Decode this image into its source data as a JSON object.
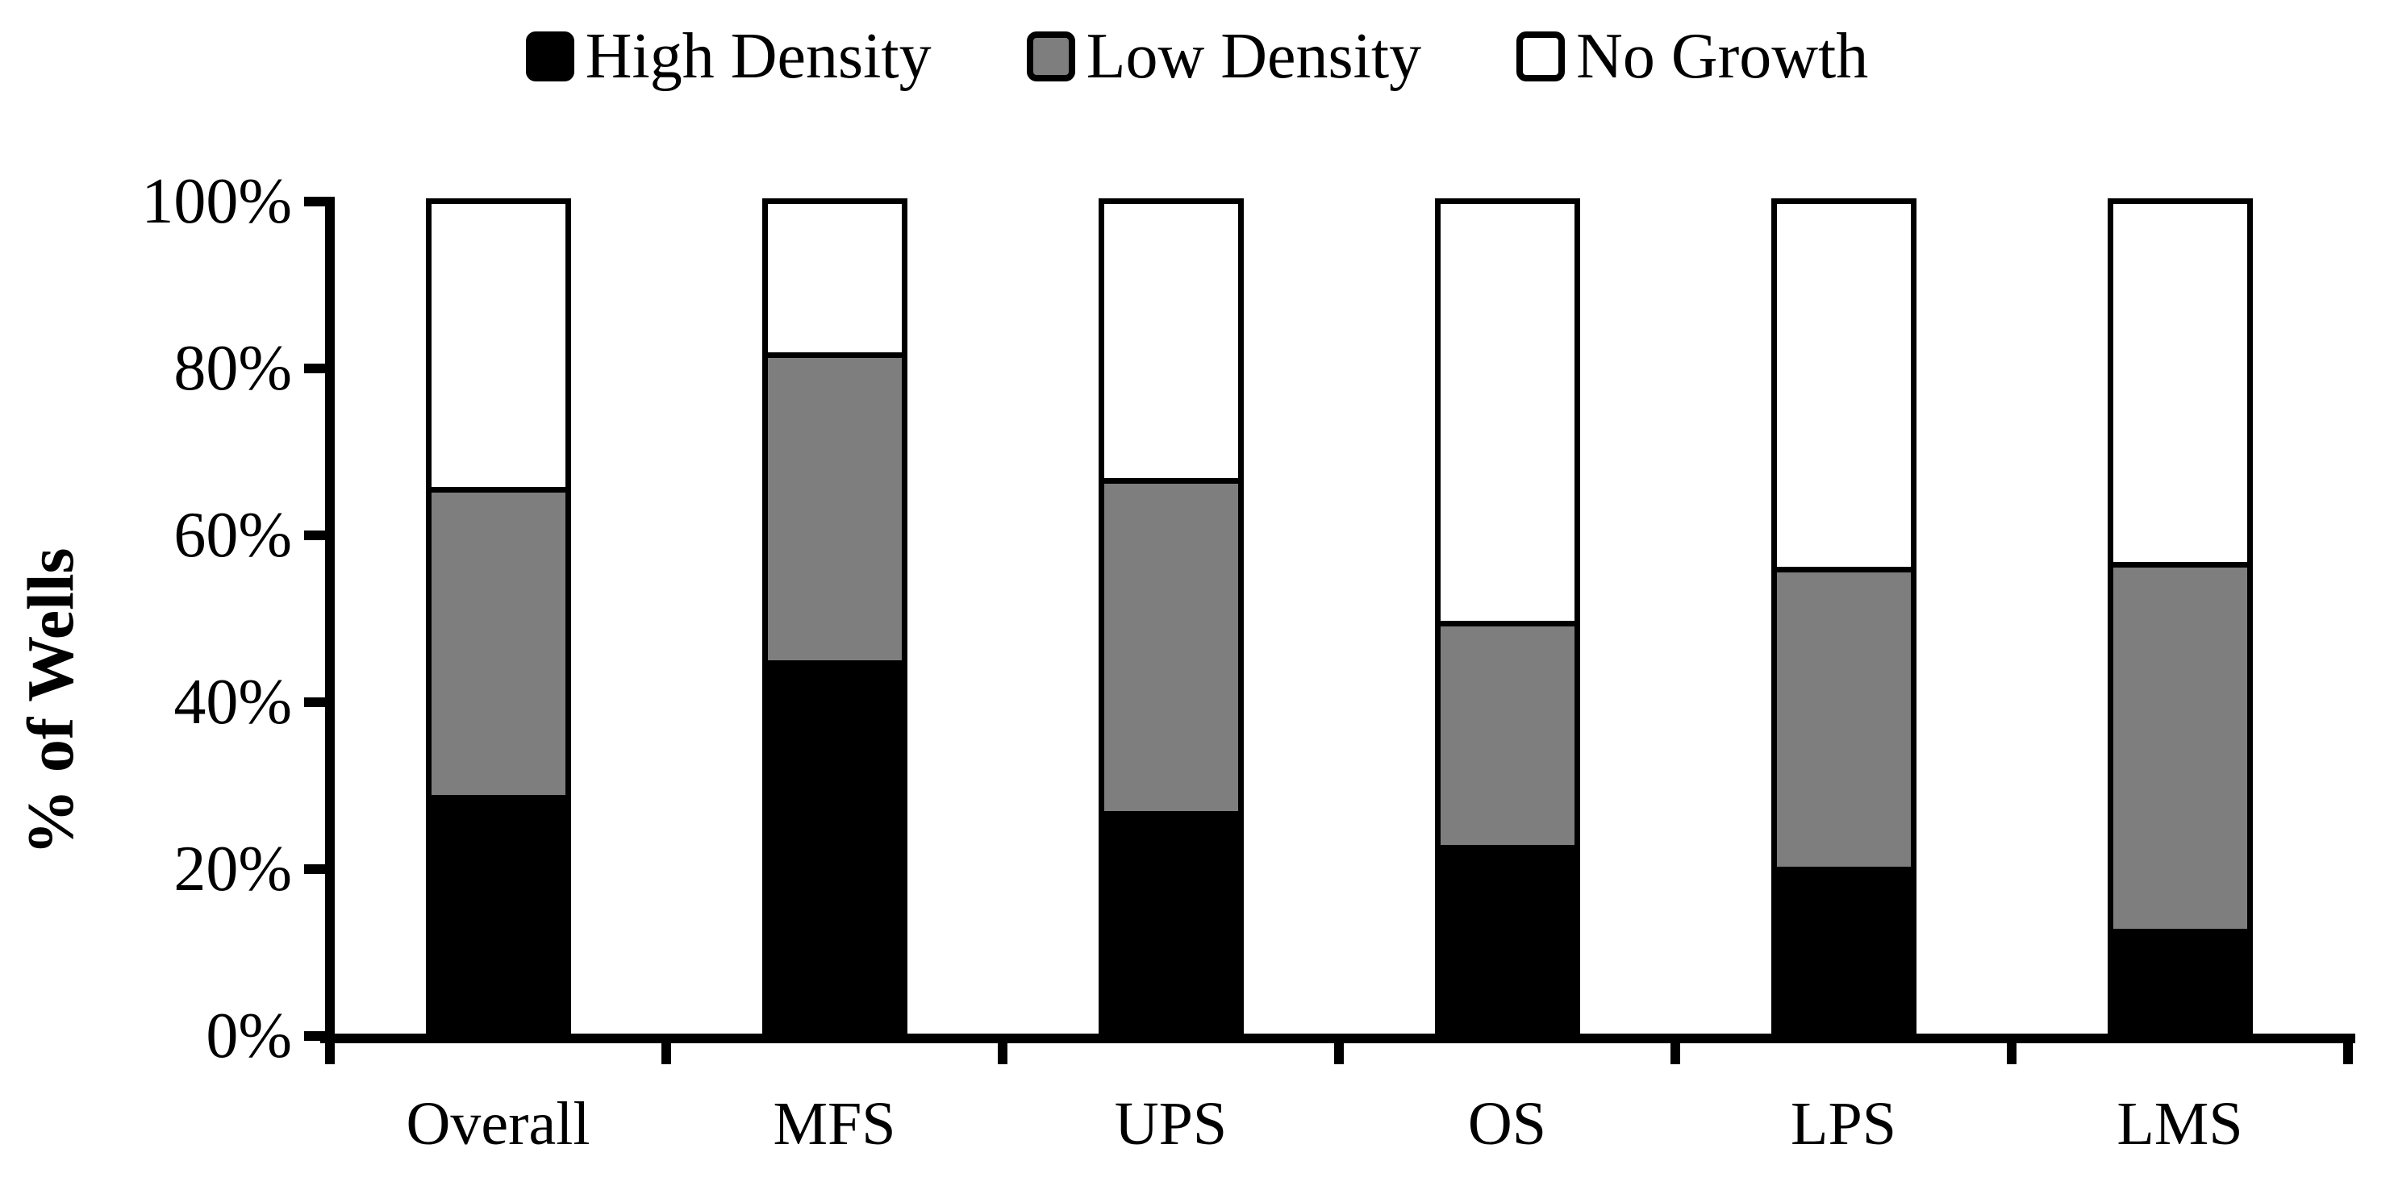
{
  "chart_data": {
    "type": "bar",
    "stacked": true,
    "orientation": "vertical",
    "title": "",
    "categories": [
      "Overall",
      "MFS",
      "UPS",
      "OS",
      "LPS",
      "LMS"
    ],
    "series": [
      {
        "name": "High Density",
        "color": "#000000",
        "values": [
          29,
          45,
          27,
          23,
          20.5,
          13
        ]
      },
      {
        "name": "Low Density",
        "color": "#7E7E7E",
        "values": [
          36,
          36,
          39,
          26,
          35,
          43
        ]
      },
      {
        "name": "No Growth",
        "color": "#FFFFFF",
        "values": [
          35,
          19,
          34,
          51,
          44.5,
          44
        ]
      }
    ],
    "xlabel": "",
    "ylabel": "% of Wells",
    "y_ticks": [
      "0%",
      "20%",
      "40%",
      "60%",
      "80%",
      "100%"
    ],
    "y_tick_values": [
      0,
      20,
      40,
      60,
      80,
      100
    ],
    "ylim": [
      0,
      100
    ],
    "legend_position": "top",
    "grid": false,
    "axis_color": "#000000",
    "segment_border_color": "#000000"
  }
}
